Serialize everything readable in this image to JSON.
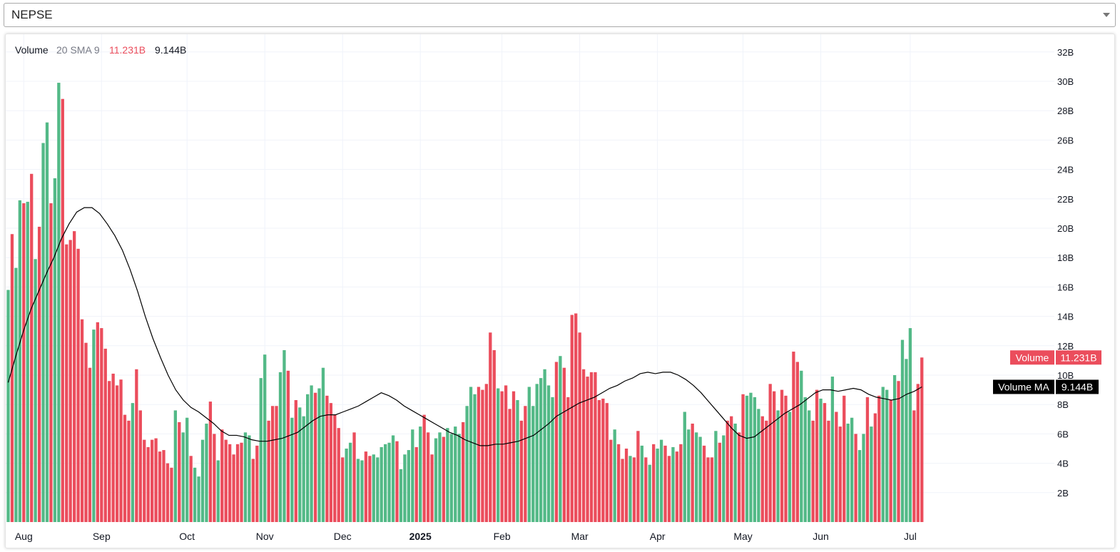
{
  "selector": {
    "value": "NEPSE"
  },
  "legend": {
    "name": "Volume",
    "params": "20 SMA 9",
    "volume_value": "11.231B",
    "ma_value": "9.144B"
  },
  "colors": {
    "up": "#53b987",
    "down": "#eb4d5c",
    "ma_line": "#000000",
    "grid": "#f0f3fa"
  },
  "chart_data": {
    "type": "bar",
    "y_unit": "B",
    "ylim": [
      0,
      33
    ],
    "y_ticks": [
      2,
      4,
      6,
      8,
      10,
      12,
      14,
      16,
      18,
      20,
      22,
      24,
      26,
      28,
      30,
      32
    ],
    "y_tick_labels": [
      "2B",
      "4B",
      "6B",
      "8B",
      "10B",
      "12B",
      "14B",
      "16B",
      "18B",
      "20B",
      "22B",
      "24B",
      "26B",
      "28B",
      "30B",
      "32B"
    ],
    "x_tick_labels": [
      {
        "label": "Aug",
        "index": 4,
        "bold": false
      },
      {
        "label": "Sep",
        "index": 24,
        "bold": false
      },
      {
        "label": "Oct",
        "index": 46,
        "bold": false
      },
      {
        "label": "Nov",
        "index": 66,
        "bold": false
      },
      {
        "label": "Dec",
        "index": 86,
        "bold": false
      },
      {
        "label": "2025",
        "index": 106,
        "bold": true
      },
      {
        "label": "Feb",
        "index": 127,
        "bold": false
      },
      {
        "label": "Mar",
        "index": 147,
        "bold": false
      },
      {
        "label": "Apr",
        "index": 167,
        "bold": false
      },
      {
        "label": "May",
        "index": 189,
        "bold": false
      },
      {
        "label": "Jun",
        "index": 209,
        "bold": false
      },
      {
        "label": "Jul",
        "index": 232,
        "bold": false
      }
    ],
    "series": [
      {
        "name": "Volume",
        "values": [
          15.8,
          19.6,
          17.3,
          21.9,
          21.7,
          21.8,
          23.7,
          17.9,
          20.1,
          25.8,
          27.2,
          21.7,
          23.4,
          29.9,
          28.8,
          18.9,
          19.2,
          19.8,
          18.6,
          13.8,
          12.2,
          10.5,
          13.1,
          13.6,
          13.2,
          11.8,
          9.6,
          10.1,
          9.3,
          9.7,
          7.3,
          6.9,
          8.1,
          10.4,
          7.6,
          5.6,
          5.1,
          5.6,
          5.7,
          4.8,
          4.9,
          4.0,
          3.7,
          7.6,
          6.8,
          6.1,
          7.1,
          4.5,
          3.7,
          3.1,
          5.6,
          6.7,
          8.2,
          6.0,
          4.2,
          6.3,
          5.6,
          5.3,
          4.6,
          5.3,
          5.4,
          6.1,
          5.9,
          4.3,
          5.2,
          9.8,
          11.4,
          6.9,
          7.9,
          7.9,
          10.2,
          11.7,
          10.3,
          7.1,
          8.3,
          7.8,
          7.2,
          8.7,
          9.3,
          8.8,
          9.1,
          10.5,
          8.6,
          8.1,
          7.3,
          6.4,
          4.4,
          5.0,
          5.4,
          6.1,
          4.3,
          4.2,
          4.8,
          4.5,
          4.6,
          4.4,
          5.1,
          5.3,
          5.4,
          5.9,
          5.5,
          3.6,
          4.6,
          4.9,
          6.3,
          5.1,
          6.5,
          7.3,
          6.1,
          4.6,
          5.7,
          6.1,
          5.8,
          6.4,
          6.0,
          6.5,
          6.0,
          6.8,
          7.9,
          9.2,
          8.7,
          9.2,
          9.0,
          9.4,
          12.9,
          11.7,
          9.1,
          8.9,
          9.3,
          7.7,
          8.9,
          8.3,
          6.9,
          7.9,
          9.2,
          7.9,
          9.4,
          9.8,
          10.4,
          9.3,
          8.5,
          10.9,
          11.3,
          10.5,
          8.5,
          14.1,
          14.2,
          12.9,
          10.4,
          9.9,
          10.2,
          10.2,
          8.3,
          8.4,
          8.1,
          5.6,
          6.3,
          5.3,
          4.3,
          5.0,
          4.5,
          4.4,
          6.2,
          5.2,
          4.4,
          3.9,
          5.3,
          5.0,
          5.6,
          5.2,
          4.5,
          5.1,
          4.8,
          5.3,
          7.5,
          6.3,
          6.7,
          6.1,
          5.8,
          5.2,
          4.4,
          4.4,
          6.2,
          5.4,
          5.9,
          6.9,
          7.2,
          6.7,
          6.1,
          8.7,
          8.6,
          8.8,
          8.5,
          7.7,
          7.2,
          6.9,
          9.4,
          8.9,
          7.6,
          9.0,
          8.6,
          7.5,
          11.6,
          10.9,
          10.3,
          8.5,
          7.6,
          6.9,
          9.0,
          8.4,
          8.1,
          6.9,
          9.9,
          7.5,
          6.5,
          8.6,
          6.7,
          7.1,
          6.0,
          4.9,
          6.0,
          8.5,
          6.5,
          7.4,
          8.6,
          9.2,
          9.0,
          8.3,
          10.0,
          9.6,
          12.4,
          11.1,
          13.2,
          7.6,
          9.4,
          11.2
        ],
        "dirs": [
          "u",
          "d",
          "u",
          "u",
          "d",
          "u",
          "d",
          "u",
          "d",
          "u",
          "u",
          "d",
          "u",
          "u",
          "d",
          "d",
          "d",
          "d",
          "d",
          "d",
          "d",
          "d",
          "u",
          "d",
          "d",
          "d",
          "d",
          "d",
          "d",
          "d",
          "d",
          "d",
          "u",
          "d",
          "d",
          "d",
          "d",
          "d",
          "d",
          "d",
          "d",
          "d",
          "d",
          "u",
          "d",
          "u",
          "u",
          "d",
          "u",
          "u",
          "u",
          "u",
          "d",
          "d",
          "u",
          "d",
          "d",
          "d",
          "d",
          "d",
          "d",
          "u",
          "u",
          "d",
          "d",
          "u",
          "u",
          "d",
          "d",
          "d",
          "u",
          "u",
          "d",
          "u",
          "d",
          "u",
          "u",
          "u",
          "u",
          "d",
          "u",
          "u",
          "d",
          "d",
          "d",
          "d",
          "d",
          "u",
          "u",
          "d",
          "u",
          "u",
          "d",
          "d",
          "u",
          "u",
          "u",
          "u",
          "u",
          "u",
          "d",
          "u",
          "u",
          "u",
          "u",
          "d",
          "u",
          "d",
          "d",
          "d",
          "u",
          "u",
          "d",
          "u",
          "u",
          "u",
          "u",
          "d",
          "u",
          "u",
          "u",
          "d",
          "d",
          "d",
          "d",
          "d",
          "u",
          "d",
          "d",
          "d",
          "d",
          "u",
          "d",
          "d",
          "u",
          "u",
          "u",
          "u",
          "u",
          "u",
          "u",
          "d",
          "u",
          "d",
          "d",
          "d",
          "d",
          "d",
          "d",
          "d",
          "d",
          "d",
          "d",
          "d",
          "d",
          "d",
          "u",
          "d",
          "d",
          "d",
          "u",
          "d",
          "d",
          "u",
          "d",
          "u",
          "d",
          "u",
          "u",
          "d",
          "d",
          "u",
          "d",
          "d",
          "u",
          "u",
          "d",
          "u",
          "u",
          "d",
          "d",
          "d",
          "u",
          "d",
          "u",
          "d",
          "d",
          "u",
          "d",
          "d",
          "u",
          "u",
          "u",
          "u",
          "d",
          "d",
          "d",
          "d",
          "u",
          "d",
          "d",
          "u",
          "d",
          "d",
          "u",
          "u",
          "u",
          "d",
          "d",
          "u",
          "d",
          "d",
          "u",
          "d",
          "d",
          "d",
          "u",
          "u",
          "d",
          "u",
          "u",
          "d",
          "u",
          "d",
          "d",
          "u",
          "u",
          "d",
          "u",
          "d",
          "u",
          "u",
          "u",
          "d",
          "d",
          "d"
        ]
      },
      {
        "name": "Volume MA",
        "values": [
          9.5,
          11.3,
          13.0,
          14.5,
          15.7,
          16.9,
          18.0,
          19.3,
          20.3,
          21.1,
          21.4,
          21.4,
          21.0,
          20.3,
          19.5,
          18.5,
          17.2,
          15.7,
          14.0,
          12.5,
          11.2,
          10.0,
          9.0,
          8.3,
          7.8,
          7.5,
          7.1,
          6.7,
          6.2,
          5.9,
          5.9,
          5.8,
          5.6,
          5.5,
          5.5,
          5.6,
          5.7,
          5.9,
          6.1,
          6.5,
          6.9,
          7.2,
          7.3,
          7.3,
          7.5,
          7.7,
          7.9,
          8.2,
          8.5,
          8.8,
          8.6,
          8.3,
          7.9,
          7.6,
          7.3,
          7.0,
          6.7,
          6.4,
          6.1,
          5.9,
          5.6,
          5.4,
          5.2,
          5.2,
          5.3,
          5.3,
          5.4,
          5.5,
          5.7,
          5.9,
          6.3,
          6.7,
          7.2,
          7.5,
          7.8,
          8.1,
          8.3,
          8.5,
          8.8,
          9.1,
          9.3,
          9.6,
          9.8,
          10.1,
          10.2,
          10.1,
          10.2,
          10.2,
          10.0,
          9.7,
          9.3,
          8.8,
          8.2,
          7.6,
          7.0,
          6.4,
          5.9,
          5.7,
          5.8,
          6.2,
          6.6,
          7.0,
          7.4,
          7.7,
          8.0,
          8.4,
          8.8,
          9.0,
          9.0,
          8.9,
          9.0,
          9.1,
          9.0,
          8.7,
          8.5,
          8.4,
          8.3,
          8.4,
          8.7,
          8.9,
          9.2
        ]
      }
    ]
  }
}
